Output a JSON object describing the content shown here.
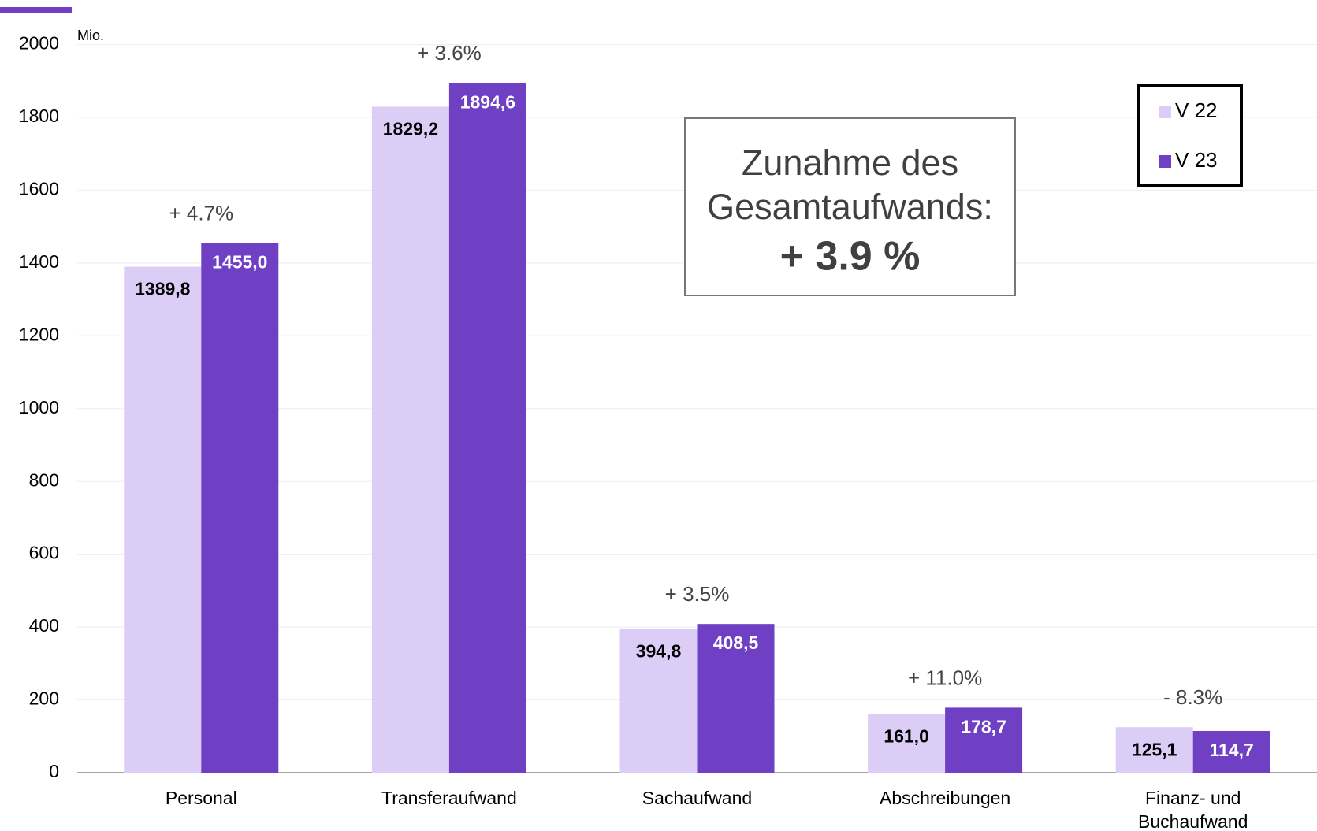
{
  "chart_data": {
    "type": "bar",
    "unit_label": "Mio.",
    "categories": [
      "Personal",
      "Transferaufwand",
      "Sachaufwand",
      "Abschreibungen",
      "Finanz- und Buchaufwand"
    ],
    "series": [
      {
        "name": "V 22",
        "color": "#dccdf7",
        "values": [
          1389.8,
          1829.2,
          394.8,
          161.0,
          125.1
        ],
        "value_labels": [
          "1389,8",
          "1829,2",
          "394,8",
          "161,0",
          "125,1"
        ]
      },
      {
        "name": "V 23",
        "color": "#6f3fc4",
        "values": [
          1455.0,
          1894.6,
          408.5,
          178.7,
          114.7
        ],
        "value_labels": [
          "1455,0",
          "1894,6",
          "408,5",
          "178,7",
          "114,7"
        ]
      }
    ],
    "change_labels": [
      "+ 4.7%",
      "+ 3.6%",
      "+ 3.5%",
      "+ 11.0%",
      "- 8.3%"
    ],
    "annotation": {
      "lines": [
        "Zunahme des",
        "Gesamtaufwands:"
      ],
      "highlight": "+ 3.9 %"
    },
    "ylim": [
      0,
      2000
    ],
    "yticks": [
      0,
      200,
      400,
      600,
      800,
      1000,
      1200,
      1400,
      1600,
      1800,
      2000
    ],
    "grid": true,
    "legend": "top-right"
  }
}
